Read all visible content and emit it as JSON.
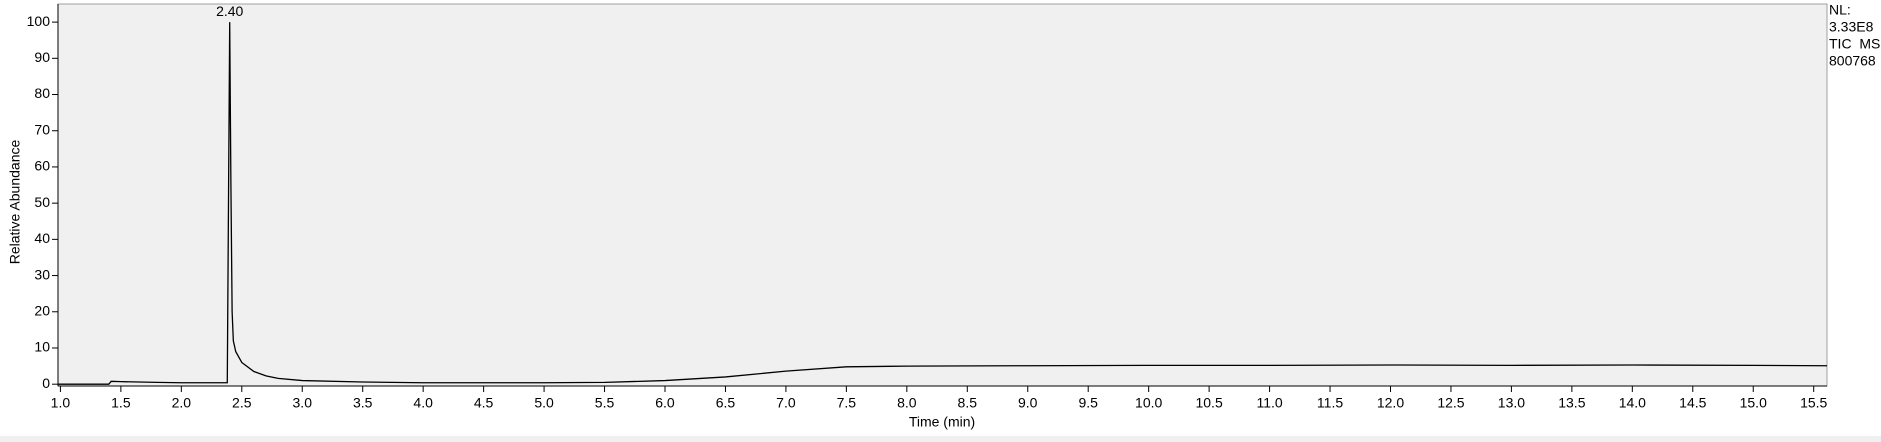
{
  "chart_data": {
    "type": "line",
    "y_label": "Relative Abundance",
    "x_label": "Time (min)",
    "side_labels": [
      "NL:",
      "3.33E8",
      "TIC  MS",
      "800768"
    ],
    "annotations": [
      {
        "text": "2.40",
        "x": 2.4,
        "y": 100
      }
    ],
    "x": [
      0.98,
      1.4,
      1.42,
      1.5,
      1.8,
      2.0,
      2.38,
      2.39,
      2.4,
      2.41,
      2.42,
      2.43,
      2.45,
      2.5,
      2.6,
      2.7,
      2.8,
      3.0,
      3.5,
      4.0,
      5.0,
      5.5,
      6.0,
      6.5,
      7.0,
      7.5,
      8.0,
      9.0,
      10.0,
      11.0,
      12.0,
      13.0,
      14.0,
      15.0,
      15.61
    ],
    "series": [
      {
        "color": "#000000",
        "values": [
          0,
          0,
          0.8,
          0.7,
          0.5,
          0.4,
          0.4,
          50,
          100,
          55,
          20,
          12,
          9,
          6,
          3.5,
          2.3,
          1.6,
          1.0,
          0.6,
          0.4,
          0.4,
          0.5,
          1.0,
          2.0,
          3.6,
          4.8,
          5.0,
          5.1,
          5.2,
          5.2,
          5.3,
          5.2,
          5.3,
          5.2,
          5.1
        ]
      }
    ],
    "xlim": [
      0.98,
      15.61
    ],
    "ylim": [
      -0.5,
      105
    ],
    "xticks": [
      {
        "value": 1,
        "label": "1.0"
      },
      1.5,
      {
        "value": 2,
        "label": "2.0"
      },
      2.5,
      {
        "value": 3,
        "label": "3.0"
      },
      3.5,
      {
        "value": 4,
        "label": "4.0"
      },
      4.5,
      {
        "value": 5,
        "label": "5.0"
      },
      5.5,
      {
        "value": 6,
        "label": "6.0"
      },
      6.5,
      {
        "value": 7,
        "label": "7.0"
      },
      7.5,
      {
        "value": 8,
        "label": "8.0"
      },
      8.5,
      {
        "value": 9,
        "label": "9.0"
      },
      9.5,
      {
        "value": 10,
        "label": "10.0"
      },
      10.5,
      {
        "value": 11,
        "label": "11.0"
      },
      11.5,
      {
        "value": 12,
        "label": "12.0"
      },
      12.5,
      {
        "value": 13,
        "label": "13.0"
      },
      13.5,
      {
        "value": 14,
        "label": "14.0"
      },
      14.5,
      {
        "value": 15,
        "label": "15.0"
      },
      15.5
    ],
    "yticks": [
      0,
      10,
      20,
      30,
      40,
      50,
      60,
      70,
      80,
      90,
      100
    ],
    "grid": false
  }
}
